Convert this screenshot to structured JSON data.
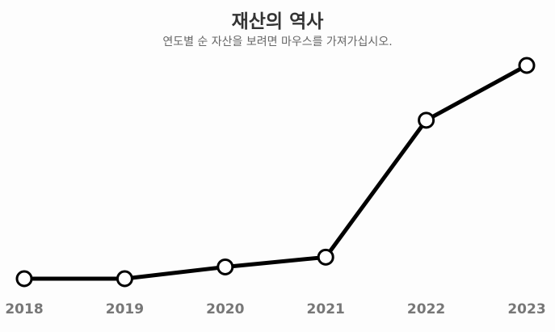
{
  "header": {
    "title": "재산의 역사",
    "subtitle": "연도별 순 자산을 보려면 마우스를 가져가십시오."
  },
  "chart_data": {
    "type": "line",
    "title": "재산의 역사",
    "subtitle": "연도별 순 자산을 보려면 마우스를 가져가십시오.",
    "xlabel": "",
    "ylabel": "",
    "categories": [
      "2018",
      "2019",
      "2020",
      "2021",
      "2022",
      "2023"
    ],
    "series": [
      {
        "values": [
          0,
          0,
          6,
          11,
          81,
          109
        ]
      }
    ],
    "ylim": [
      0,
      109
    ],
    "grid": false,
    "legend": "none",
    "line_color": "#000000",
    "marker_fill": "#ffffff",
    "tick_color": "#777777"
  }
}
